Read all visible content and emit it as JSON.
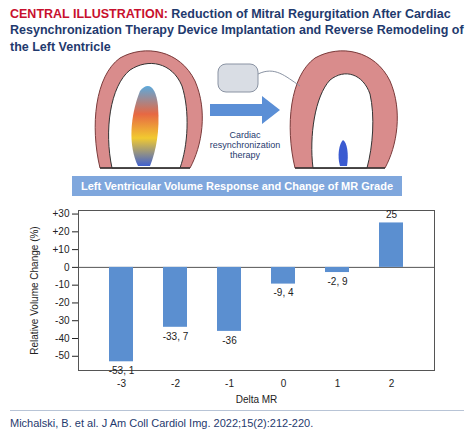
{
  "header": {
    "label": "CENTRAL ILLUSTRATION:",
    "title": "Reduction of Mitral Regurgitation After Cardiac Resynchronization Therapy Device Implantation and Reverse Remodeling of the Left Ventricle"
  },
  "illustration": {
    "arrow_label": "Cardiac resynchronization therapy"
  },
  "chart_data": {
    "type": "bar",
    "title": "Left Ventricular Volume Response and Change of MR Grade",
    "x_label": "Delta MR",
    "y_label": "Relative Volume Change (%)",
    "categories": [
      "-3",
      "-2",
      "-1",
      "0",
      "1",
      "2"
    ],
    "values": [
      -53.1,
      -33.7,
      -36,
      -9.4,
      -2.9,
      25
    ],
    "value_labels": [
      "-53, 1",
      "-33, 7",
      "-36",
      "-9, 4",
      "-2, 9",
      "25"
    ],
    "data_labels": true,
    "color": "#5b8fd0",
    "grid": false,
    "ylim": [
      -58,
      32
    ],
    "yticks": [
      {
        "value": 30,
        "label": "+30"
      },
      {
        "value": 20,
        "label": "+20"
      },
      {
        "value": 10,
        "label": "+10"
      },
      0,
      -10,
      -20,
      -30,
      -40,
      -50
    ]
  },
  "footer": "Michalski, B. et al. J Am Coll Cardiol Img. 2022;15(2):212-220."
}
